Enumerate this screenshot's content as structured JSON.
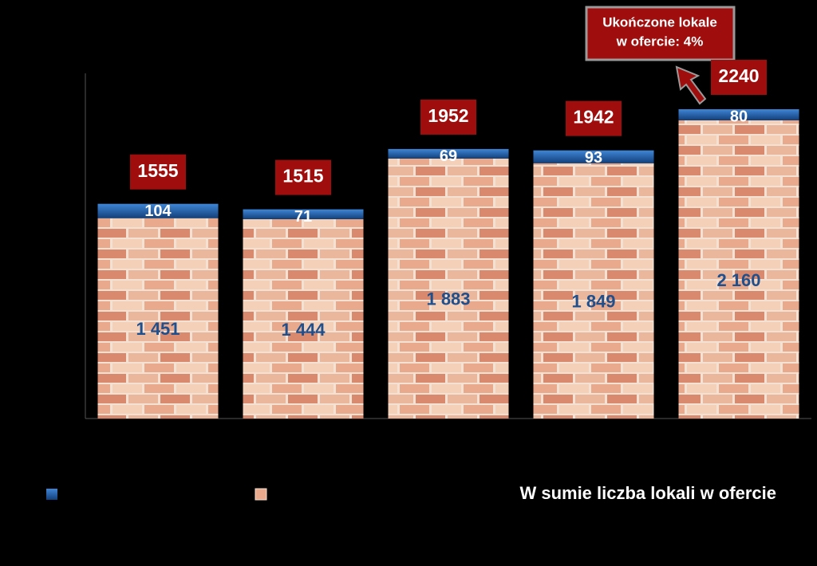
{
  "chart_data": {
    "type": "bar",
    "stacked": true,
    "categories": [
      null,
      null,
      null,
      null,
      null
    ],
    "series": [
      {
        "color": "#f0c3a6",
        "values": [
          1451,
          1444,
          1883,
          1849,
          2160
        ],
        "value_labels": [
          "1 451",
          "1 444",
          "1 883",
          "1 849",
          "2 160"
        ]
      },
      {
        "color": "#1f5fa8",
        "values": [
          104,
          71,
          69,
          93,
          80
        ]
      }
    ],
    "totals": {
      "name": "W sumie liczba lokali w ofercie",
      "color": "#a00d0d",
      "values": [
        1555,
        1515,
        1952,
        1942,
        2240
      ]
    },
    "annotation": {
      "lines": [
        "Ukończone lokale",
        "w ofercie: 4%"
      ]
    },
    "ylim": [
      0,
      2500
    ]
  }
}
